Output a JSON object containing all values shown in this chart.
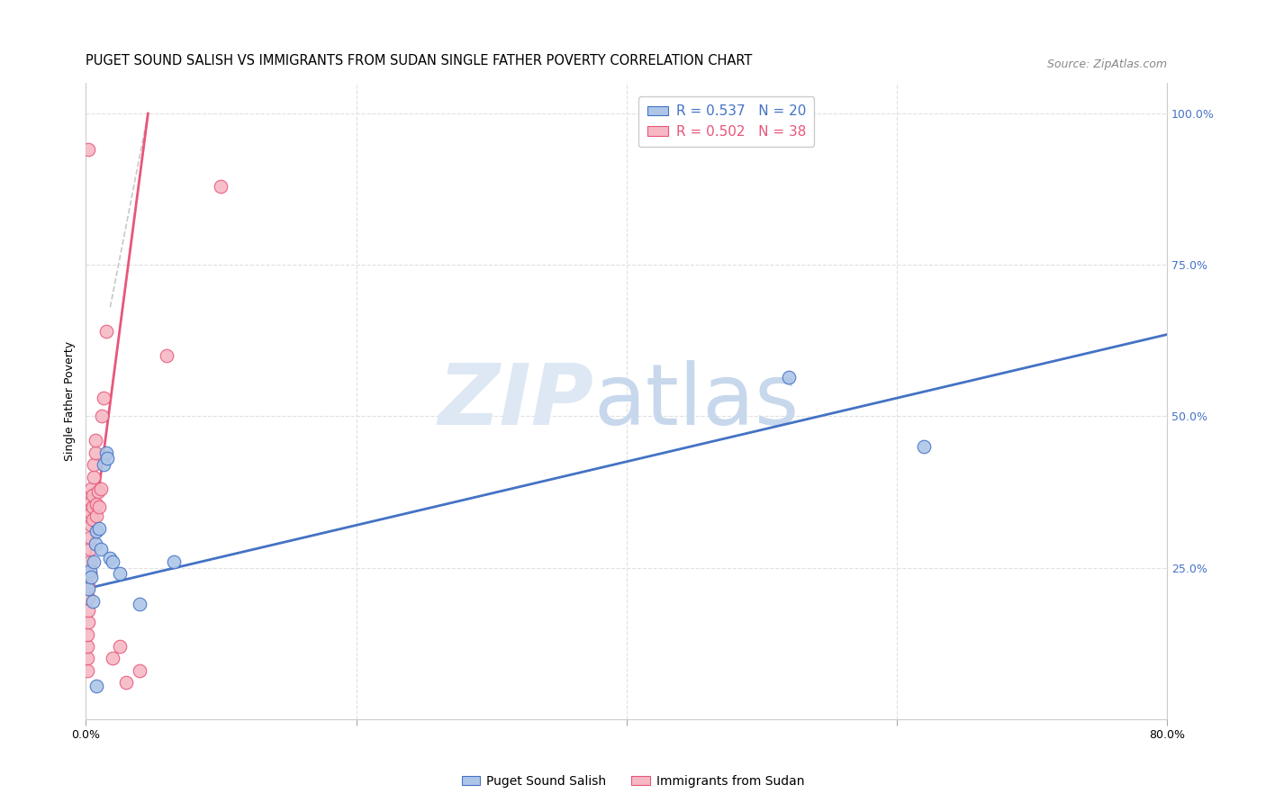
{
  "title": "PUGET SOUND SALISH VS IMMIGRANTS FROM SUDAN SINGLE FATHER POVERTY CORRELATION CHART",
  "source": "Source: ZipAtlas.com",
  "ylabel": "Single Father Poverty",
  "xlim": [
    0.0,
    0.8
  ],
  "ylim": [
    0.0,
    1.05
  ],
  "yticks_right": [
    0.0,
    0.25,
    0.5,
    0.75,
    1.0
  ],
  "yticklabels_right": [
    "",
    "25.0%",
    "50.0%",
    "75.0%",
    "100.0%"
  ],
  "legend_blue_R": "R = 0.537",
  "legend_blue_N": "N = 20",
  "legend_pink_R": "R = 0.502",
  "legend_pink_N": "N = 38",
  "blue_color": "#adc6e8",
  "pink_color": "#f5b8c4",
  "blue_line_color": "#4472c4",
  "pink_line_color": "#e8567a",
  "dashed_line_color": "#c8c8c8",
  "grid_color": "#e0e0e0",
  "watermark_zip": "ZIP",
  "watermark_atlas": "atlas",
  "blue_scatter_x": [
    0.002,
    0.003,
    0.004,
    0.005,
    0.006,
    0.007,
    0.008,
    0.01,
    0.011,
    0.013,
    0.015,
    0.016,
    0.018,
    0.02,
    0.025,
    0.04,
    0.065,
    0.52,
    0.62,
    0.008
  ],
  "blue_scatter_y": [
    0.215,
    0.245,
    0.235,
    0.195,
    0.26,
    0.29,
    0.31,
    0.315,
    0.28,
    0.42,
    0.44,
    0.43,
    0.265,
    0.26,
    0.24,
    0.19,
    0.26,
    0.565,
    0.45,
    0.055
  ],
  "pink_scatter_x": [
    0.001,
    0.001,
    0.001,
    0.001,
    0.002,
    0.002,
    0.002,
    0.002,
    0.003,
    0.003,
    0.003,
    0.003,
    0.004,
    0.004,
    0.004,
    0.004,
    0.005,
    0.005,
    0.005,
    0.006,
    0.006,
    0.007,
    0.007,
    0.008,
    0.008,
    0.009,
    0.01,
    0.011,
    0.012,
    0.013,
    0.015,
    0.02,
    0.025,
    0.03,
    0.04,
    0.06,
    0.1,
    0.002
  ],
  "pink_scatter_y": [
    0.08,
    0.1,
    0.12,
    0.14,
    0.16,
    0.18,
    0.2,
    0.22,
    0.24,
    0.26,
    0.28,
    0.3,
    0.32,
    0.34,
    0.36,
    0.38,
    0.33,
    0.35,
    0.37,
    0.4,
    0.42,
    0.44,
    0.46,
    0.335,
    0.355,
    0.375,
    0.35,
    0.38,
    0.5,
    0.53,
    0.64,
    0.1,
    0.12,
    0.06,
    0.08,
    0.6,
    0.88,
    0.94
  ],
  "blue_line_x": [
    0.0,
    0.8
  ],
  "blue_line_y": [
    0.215,
    0.635
  ],
  "pink_line_x": [
    0.0,
    0.046
  ],
  "pink_line_y": [
    0.215,
    1.0
  ],
  "dashed_line_x": [
    0.018,
    0.046
  ],
  "dashed_line_y": [
    0.68,
    1.0
  ],
  "title_fontsize": 10.5,
  "axis_fontsize": 9,
  "legend_fontsize": 11,
  "source_fontsize": 9
}
